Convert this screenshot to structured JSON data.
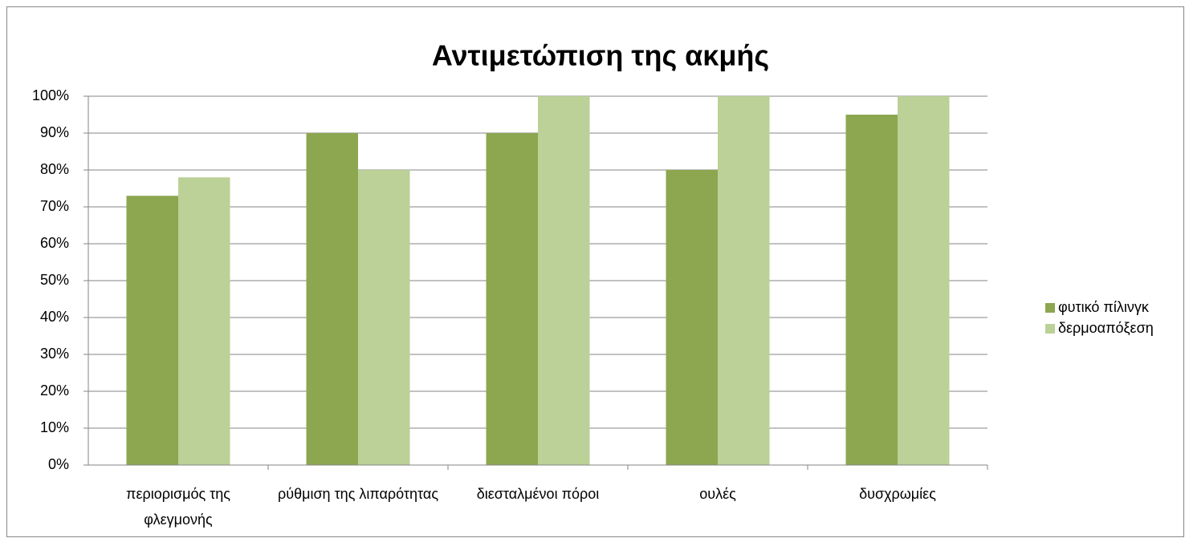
{
  "chart_data": {
    "type": "bar",
    "title": "Αντιμετώπιση της ακμής",
    "categories": [
      "περιορισμός της φλεγμονής",
      "ρύθμιση της λιπαρότητας",
      "διεσταλμένοι πόροι",
      "ουλές",
      "δυσχρωμίες"
    ],
    "series": [
      {
        "name": "φυτικό πίλινγκ",
        "color": "#8ca74f",
        "values": [
          73,
          90,
          90,
          80,
          95
        ]
      },
      {
        "name": "δερμοαπόξεση",
        "color": "#bbd197",
        "values": [
          78,
          80,
          100,
          100,
          100
        ]
      }
    ],
    "ylim": [
      0,
      100
    ],
    "yticks": [
      {
        "value": 0,
        "label": "0%"
      },
      {
        "value": 10,
        "label": "10%"
      },
      {
        "value": 20,
        "label": "20%"
      },
      {
        "value": 30,
        "label": "30%"
      },
      {
        "value": 40,
        "label": "40%"
      },
      {
        "value": 50,
        "label": "50%"
      },
      {
        "value": 60,
        "label": "60%"
      },
      {
        "value": 70,
        "label": "70%"
      },
      {
        "value": 80,
        "label": "80%"
      },
      {
        "value": 90,
        "label": "90%"
      },
      {
        "value": 100,
        "label": "100%"
      }
    ],
    "grid": true,
    "legend": "right"
  }
}
